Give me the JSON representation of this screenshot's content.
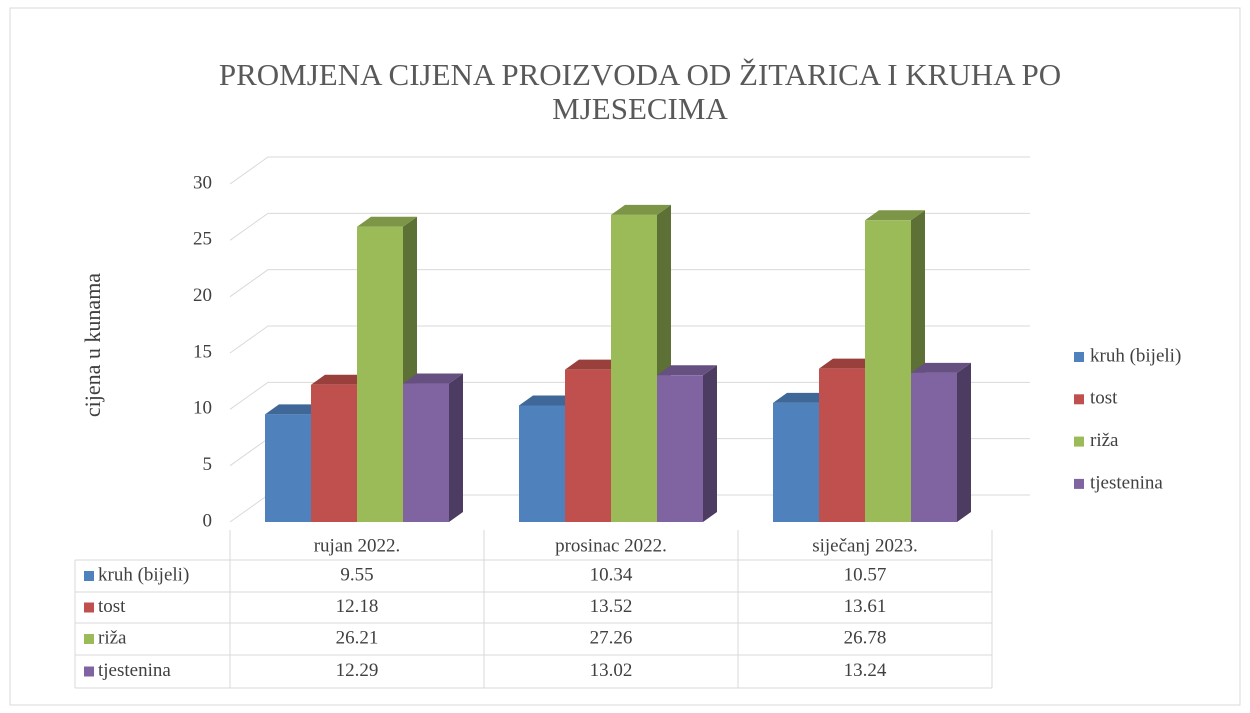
{
  "chart_data": {
    "type": "bar3d",
    "title": "PROMJENA CIJENA PROIZVODA  OD ŽITARICA I KRUHA PO MJESECIMA",
    "y_label": "cijena u kunama",
    "categories": [
      "rujan 2022.",
      "prosinac 2022.",
      "siječanj 2023."
    ],
    "series": [
      {
        "name": "kruh (bijeli)",
        "color": "#4f81bd",
        "values": [
          9.55,
          10.34,
          10.57
        ]
      },
      {
        "name": "tost",
        "color": "#c0504d",
        "values": [
          12.18,
          13.52,
          13.61
        ]
      },
      {
        "name": "riža",
        "color": "#9bbb59",
        "values": [
          26.21,
          27.26,
          26.78
        ]
      },
      {
        "name": "tjestenina",
        "color": "#8064a2",
        "values": [
          12.29,
          13.02,
          13.24
        ]
      }
    ],
    "ylim": [
      0,
      30
    ],
    "yticks": [
      0,
      5,
      10,
      15,
      20,
      25,
      30
    ],
    "grid": true,
    "legend": "right",
    "data_table": true
  }
}
